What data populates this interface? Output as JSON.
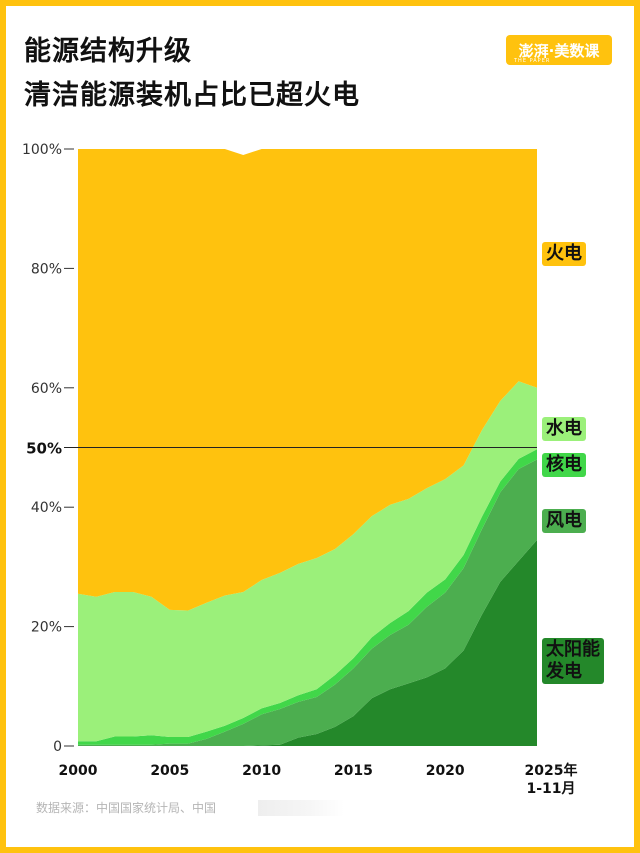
{
  "title_line1": "能源结构升级",
  "title_line2": "清洁能源装机占比已超火电",
  "logo_text": "澎湃·美数课",
  "logo_sub": "THE PAPER",
  "source": "数据来源：中国国家统计局、中国",
  "chart_data": {
    "type": "area",
    "stacked": true,
    "title": "能源结构升级 清洁能源装机占比已超火电",
    "x": [
      "2000",
      "2001",
      "2002",
      "2003",
      "2004",
      "2005",
      "2006",
      "2007",
      "2008",
      "2009",
      "2010",
      "2011",
      "2012",
      "2013",
      "2014",
      "2015",
      "2016",
      "2017",
      "2018",
      "2019",
      "2020",
      "2021",
      "2022",
      "2023",
      "2024",
      "2025年1-11月"
    ],
    "xticks": [
      "2000",
      "2005",
      "2010",
      "2015",
      "2020"
    ],
    "xtick_last": [
      "2025年",
      "1-11月"
    ],
    "ylim": [
      0,
      100
    ],
    "yticks": [
      "0",
      "20%",
      "40%",
      "60%",
      "80%",
      "100%"
    ],
    "reference_line": {
      "value": 50,
      "label": "50%"
    },
    "series": [
      {
        "name": "太阳能发电",
        "label_lines": [
          "太阳能",
          "发电"
        ],
        "color": "#24882A",
        "values": [
          0,
          0,
          0,
          0,
          0,
          0,
          0,
          0,
          0,
          0,
          0.1,
          0.2,
          1.4,
          2.0,
          3.2,
          5.0,
          8.0,
          9.5,
          10.5,
          11.5,
          13.0,
          16.0,
          22.0,
          27.5,
          31.0,
          34.5
        ]
      },
      {
        "name": "风电",
        "label_lines": [
          "风电"
        ],
        "color": "#4CAE4F",
        "values": [
          0.2,
          0.2,
          0.2,
          0.2,
          0.2,
          0.4,
          0.4,
          1.2,
          2.4,
          3.7,
          5.2,
          6.0,
          6.0,
          6.2,
          7.1,
          8.0,
          8.3,
          9.1,
          9.8,
          11.8,
          12.7,
          13.8,
          14.3,
          15.0,
          15.4,
          13.5
        ]
      },
      {
        "name": "核电",
        "label_lines": [
          "核电"
        ],
        "color": "#41D749",
        "values": [
          0.6,
          0.6,
          1.4,
          1.4,
          1.6,
          1.1,
          1.1,
          1.2,
          1.0,
          1.0,
          1.0,
          1.0,
          1.1,
          1.3,
          1.6,
          1.7,
          1.9,
          2.0,
          2.3,
          2.4,
          2.2,
          2.2,
          2.1,
          1.8,
          1.7,
          1.7
        ]
      },
      {
        "name": "水电",
        "label_lines": [
          "水电"
        ],
        "color": "#9BF07A",
        "values": [
          24.7,
          24.2,
          24.2,
          24.2,
          23.2,
          21.3,
          21.2,
          21.6,
          21.8,
          21.1,
          21.5,
          21.8,
          22.0,
          22.0,
          21.1,
          20.8,
          20.3,
          19.8,
          18.8,
          17.5,
          16.8,
          15.0,
          14.5,
          13.5,
          13.0,
          10.3
        ]
      },
      {
        "name": "火电",
        "label_lines": [
          "火电"
        ],
        "color": "#FFC20E",
        "values": [
          74.5,
          75.0,
          74.2,
          74.2,
          75.0,
          77.2,
          77.3,
          76.0,
          74.8,
          73.2,
          72.2,
          71.0,
          69.5,
          68.5,
          67.0,
          64.5,
          61.5,
          59.6,
          58.6,
          56.8,
          55.3,
          53.0,
          47.1,
          42.2,
          38.9,
          40.0
        ]
      }
    ]
  }
}
